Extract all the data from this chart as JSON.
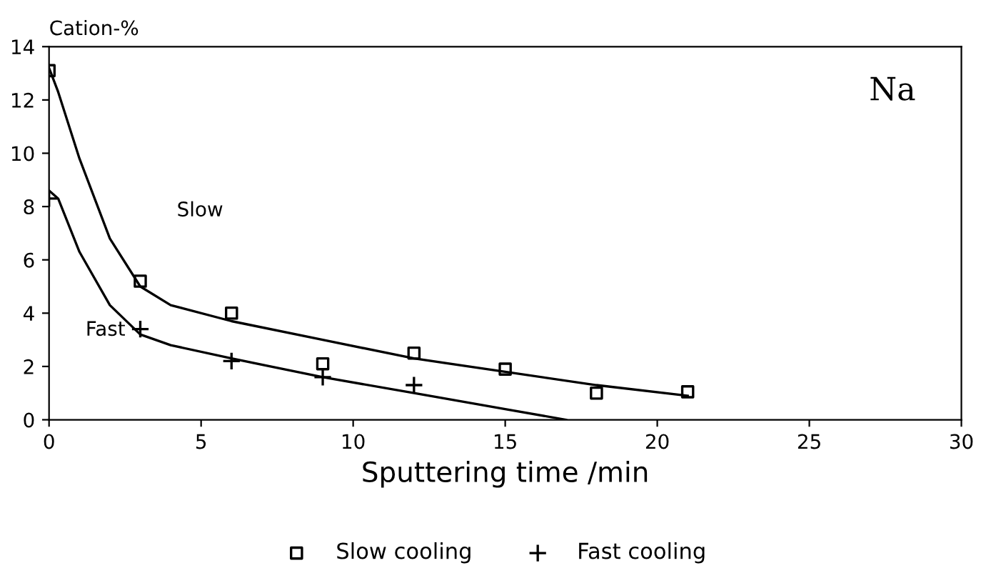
{
  "chart_data": {
    "type": "scatter",
    "xlabel": "Sputtering time /min",
    "ylabel": "Cation-%",
    "xlim": [
      0,
      30
    ],
    "ylim": [
      0,
      14
    ],
    "xticks": [
      0,
      5,
      10,
      15,
      20,
      25,
      30
    ],
    "yticks": [
      0,
      2,
      4,
      6,
      8,
      10,
      12,
      14
    ],
    "legend": "bottom",
    "grid": false,
    "annotations": [
      "Slow",
      "Fast",
      "Na"
    ],
    "series": [
      {
        "name": "Slow cooling",
        "color": "#000000",
        "marker": "square",
        "x": [
          0,
          3,
          6,
          9,
          12,
          15,
          18,
          21
        ],
        "values": [
          13.1,
          5.2,
          4.0,
          2.1,
          2.5,
          1.9,
          1.0,
          1.05
        ]
      },
      {
        "name": "Fast cooling",
        "color": "#000000",
        "marker": "cross",
        "x": [
          0,
          3,
          6,
          9,
          12
        ],
        "values": [
          8.3,
          3.4,
          2.2,
          1.6,
          1.3
        ]
      },
      {
        "type": "line",
        "color": "#000000",
        "marker": "none",
        "x": [
          0,
          0.3,
          1,
          2,
          3,
          4,
          6,
          9,
          12,
          15,
          18,
          21
        ],
        "values": [
          13.2,
          12.3,
          9.8,
          6.8,
          5.0,
          4.3,
          3.7,
          3.0,
          2.3,
          1.8,
          1.3,
          0.9
        ]
      },
      {
        "type": "line",
        "color": "#000000",
        "marker": "none",
        "x": [
          0,
          0.3,
          1,
          2,
          3,
          4,
          6,
          9,
          12,
          15,
          17
        ],
        "values": [
          8.6,
          8.3,
          6.3,
          4.3,
          3.2,
          2.8,
          2.3,
          1.6,
          1.0,
          0.4,
          0.0
        ]
      }
    ]
  }
}
